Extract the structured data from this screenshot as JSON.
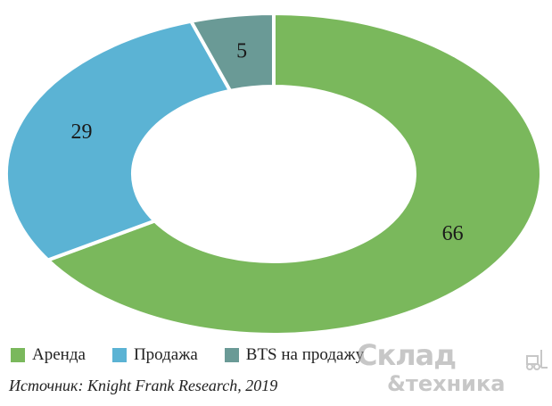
{
  "chart_data": {
    "type": "pie",
    "donut": true,
    "categories": [
      "Аренда",
      "Продажа",
      "BTS на продажу"
    ],
    "values": [
      66,
      29,
      5
    ],
    "colors": [
      "#7ab85c",
      "#5bb3d4",
      "#6a9a96"
    ],
    "legend_position": "bottom-left",
    "source": "Источник: Knight Frank Research, 2019"
  },
  "watermark": {
    "line1": "Склад",
    "line2": "&техника",
    "icon": "forklift-icon"
  }
}
